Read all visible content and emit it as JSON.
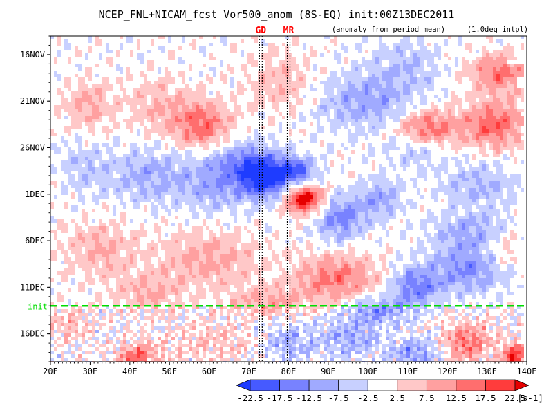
{
  "chart_data": {
    "type": "heatmap",
    "title": "NCEP_FNL+NICAM_fcst Vor500_anom (8S-EQ) init:00Z13DEC2011",
    "subtitle_left": "(anomaly from period mean)",
    "subtitle_right": "(1.0deg intpl)",
    "x_axis": {
      "ticks": [
        "20E",
        "30E",
        "40E",
        "50E",
        "60E",
        "70E",
        "80E",
        "90E",
        "100E",
        "110E",
        "120E",
        "130E",
        "140E"
      ],
      "range_deg_east": [
        20,
        140
      ]
    },
    "y_axis": {
      "ticks": [
        "16NOV",
        "21NOV",
        "26NOV",
        "1DEC",
        "6DEC",
        "11DEC",
        "16DEC"
      ],
      "tick_offset_days_from_16NOV": [
        0,
        5,
        10,
        15,
        20,
        25,
        30
      ],
      "range_days_from_16NOV": [
        -2,
        33
      ],
      "direction": "time increases downward"
    },
    "markers": [
      {
        "label": "GD",
        "lon_deg_east": 73,
        "color": "#ff0000"
      },
      {
        "label": "MR",
        "lon_deg_east": 80,
        "color": "#ff0000"
      }
    ],
    "init_line": {
      "label": "init",
      "day_offset": 27,
      "color": "#00dd00"
    },
    "colorbar": {
      "unit": "[s-1]",
      "levels": [
        "-22.5",
        "-17.5",
        "-12.5",
        "-7.5",
        "-2.5",
        "2.5",
        "7.5",
        "12.5",
        "17.5",
        "22.5"
      ],
      "colors": [
        "#1e3cff",
        "#465aff",
        "#7882ff",
        "#a0aaff",
        "#c8d0ff",
        "#ffffff",
        "#ffc8c8",
        "#ffa0a0",
        "#ff6e6e",
        "#ff3c3c",
        "#e60000"
      ]
    },
    "field_blobs": [
      {
        "lon": 58,
        "day": 7.5,
        "rlon": 7,
        "rday": 2.5,
        "value": 16
      },
      {
        "lon": 47,
        "day": 5.5,
        "rlon": 7,
        "rday": 3,
        "value": 7
      },
      {
        "lon": 30,
        "day": 5.5,
        "rlon": 6,
        "rday": 2.5,
        "value": 9
      },
      {
        "lon": 78,
        "day": 3,
        "rlon": 8,
        "rday": 3,
        "value": 7
      },
      {
        "lon": 70,
        "day": 11.5,
        "rlon": 8,
        "rday": 2,
        "value": -14
      },
      {
        "lon": 74,
        "day": 13.5,
        "rlon": 6,
        "rday": 2,
        "value": -24
      },
      {
        "lon": 82,
        "day": 12.5,
        "rlon": 5,
        "rday": 1.5,
        "value": -17
      },
      {
        "lon": 84,
        "day": 15.5,
        "rlon": 5,
        "rday": 1.5,
        "value": 26
      },
      {
        "lon": 62,
        "day": 14,
        "rlon": 8,
        "rday": 3,
        "value": -9
      },
      {
        "lon": 45,
        "day": 13,
        "rlon": 12,
        "rday": 3,
        "value": -9
      },
      {
        "lon": 28,
        "day": 12,
        "rlon": 6,
        "rday": 2.5,
        "value": -5
      },
      {
        "lon": 93,
        "day": 17.5,
        "rlon": 6,
        "rday": 2.5,
        "value": -14
      },
      {
        "lon": 103,
        "day": 15.5,
        "rlon": 5,
        "rday": 2,
        "value": -11
      },
      {
        "lon": 100,
        "day": 5,
        "rlon": 12,
        "rday": 3,
        "value": -11
      },
      {
        "lon": 112,
        "day": 10,
        "rlon": 7,
        "rday": 2,
        "value": -8
      },
      {
        "lon": 115,
        "day": 8,
        "rlon": 8,
        "rday": 2,
        "value": 17
      },
      {
        "lon": 132,
        "day": 7.5,
        "rlon": 8,
        "rday": 2.5,
        "value": 16
      },
      {
        "lon": 128,
        "day": 14,
        "rlon": 10,
        "rday": 2.5,
        "value": -8
      },
      {
        "lon": 133,
        "day": 2,
        "rlon": 7,
        "rday": 2,
        "value": 15
      },
      {
        "lon": 110,
        "day": 1,
        "rlon": 8,
        "rday": 2.5,
        "value": -7
      },
      {
        "lon": 60,
        "day": 22,
        "rlon": 12,
        "rday": 3,
        "value": 9
      },
      {
        "lon": 33,
        "day": 21,
        "rlon": 9,
        "rday": 3,
        "value": 8
      },
      {
        "lon": 92,
        "day": 24,
        "rlon": 10,
        "rday": 2.5,
        "value": 14
      },
      {
        "lon": 112,
        "day": 25,
        "rlon": 6,
        "rday": 2,
        "value": -15
      },
      {
        "lon": 125,
        "day": 23,
        "rlon": 10,
        "rday": 2.5,
        "value": -13
      },
      {
        "lon": 126,
        "day": 19,
        "rlon": 10,
        "rday": 2,
        "value": -9
      },
      {
        "lon": 135,
        "day": 21,
        "rlon": 5,
        "rday": 2,
        "value": 8
      },
      {
        "lon": 45,
        "day": 25.5,
        "rlon": 8,
        "rday": 2,
        "value": 8
      },
      {
        "lon": 75,
        "day": 26.5,
        "rlon": 10,
        "rday": 1.5,
        "value": 9
      },
      {
        "lon": 102,
        "day": 27.5,
        "rlon": 8,
        "rday": 1.5,
        "value": -12
      },
      {
        "lon": 125,
        "day": 31,
        "rlon": 6,
        "rday": 2,
        "value": 15
      },
      {
        "lon": 137,
        "day": 32.5,
        "rlon": 3,
        "rday": 1.5,
        "value": 22
      },
      {
        "lon": 42,
        "day": 32.5,
        "rlon": 5,
        "rday": 1.5,
        "value": 16
      },
      {
        "lon": 95,
        "day": 30.5,
        "rlon": 8,
        "rday": 2,
        "value": -10
      },
      {
        "lon": 60,
        "day": 31,
        "rlon": 10,
        "rday": 2,
        "value": 6
      },
      {
        "lon": 25,
        "day": 29,
        "rlon": 5,
        "rday": 1.5,
        "value": 7
      },
      {
        "lon": 112,
        "day": 32,
        "rlon": 6,
        "rday": 1.5,
        "value": -12
      },
      {
        "lon": 80,
        "day": 31,
        "rlon": 6,
        "rday": 2,
        "value": -9
      }
    ]
  }
}
